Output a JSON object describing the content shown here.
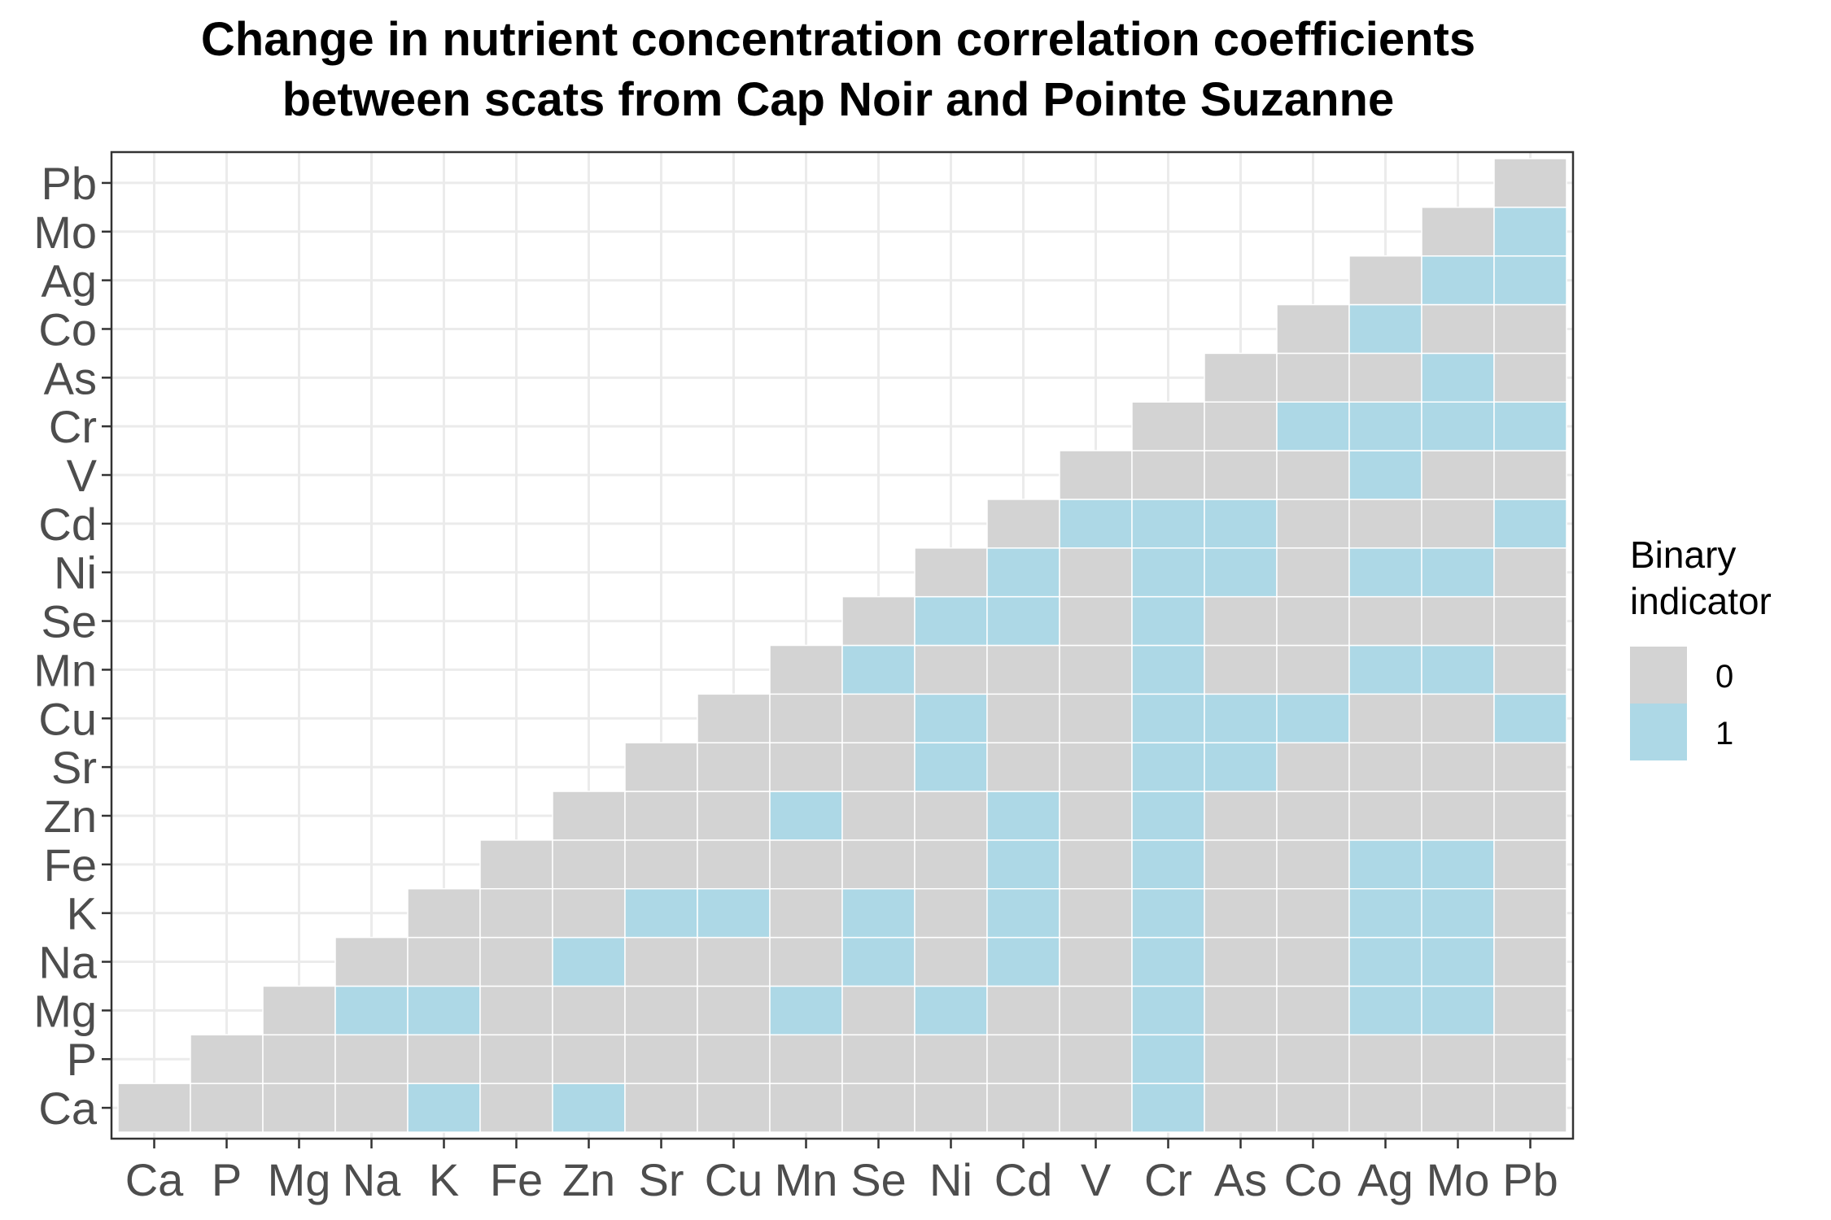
{
  "chart_data": {
    "type": "heatmap",
    "title_lines": [
      "Change in nutrient concentration correlation coefficients",
      "between scats from Cap Noir and Pointe Suzanne"
    ],
    "xlabel": "",
    "ylabel": "",
    "x_categories": [
      "Ca",
      "P",
      "Mg",
      "Na",
      "K",
      "Fe",
      "Zn",
      "Sr",
      "Cu",
      "Mn",
      "Se",
      "Ni",
      "Cd",
      "V",
      "Cr",
      "As",
      "Co",
      "Ag",
      "Mo",
      "Pb"
    ],
    "y_categories": [
      "Ca",
      "P",
      "Mg",
      "Na",
      "K",
      "Fe",
      "Zn",
      "Sr",
      "Cu",
      "Mn",
      "Se",
      "Ni",
      "Cd",
      "V",
      "Cr",
      "As",
      "Co",
      "Ag",
      "Mo",
      "Pb"
    ],
    "matrix_note": "upper triangle; row index = y category, column index = x category; null = no tile",
    "values": [
      [
        0,
        0,
        0,
        0,
        1,
        0,
        1,
        0,
        0,
        0,
        0,
        0,
        0,
        0,
        1,
        0,
        0,
        0,
        0,
        0
      ],
      [
        null,
        0,
        0,
        0,
        0,
        0,
        0,
        0,
        0,
        0,
        0,
        0,
        0,
        0,
        1,
        0,
        0,
        0,
        0,
        0
      ],
      [
        null,
        null,
        0,
        1,
        1,
        0,
        0,
        0,
        0,
        1,
        0,
        1,
        0,
        0,
        1,
        0,
        0,
        1,
        1,
        0
      ],
      [
        null,
        null,
        null,
        0,
        0,
        0,
        1,
        0,
        0,
        0,
        1,
        0,
        1,
        0,
        1,
        0,
        0,
        1,
        1,
        0
      ],
      [
        null,
        null,
        null,
        null,
        0,
        0,
        0,
        1,
        1,
        0,
        1,
        0,
        1,
        0,
        1,
        0,
        0,
        1,
        1,
        0
      ],
      [
        null,
        null,
        null,
        null,
        null,
        0,
        0,
        0,
        0,
        0,
        0,
        0,
        1,
        0,
        1,
        0,
        0,
        1,
        1,
        0
      ],
      [
        null,
        null,
        null,
        null,
        null,
        null,
        0,
        0,
        0,
        1,
        0,
        0,
        1,
        0,
        1,
        0,
        0,
        0,
        0,
        0
      ],
      [
        null,
        null,
        null,
        null,
        null,
        null,
        null,
        0,
        0,
        0,
        0,
        1,
        0,
        0,
        1,
        1,
        0,
        0,
        0,
        0
      ],
      [
        null,
        null,
        null,
        null,
        null,
        null,
        null,
        null,
        0,
        0,
        0,
        1,
        0,
        0,
        1,
        1,
        1,
        0,
        0,
        1
      ],
      [
        null,
        null,
        null,
        null,
        null,
        null,
        null,
        null,
        null,
        0,
        1,
        0,
        0,
        0,
        1,
        0,
        0,
        1,
        1,
        0
      ],
      [
        null,
        null,
        null,
        null,
        null,
        null,
        null,
        null,
        null,
        null,
        0,
        1,
        1,
        0,
        1,
        0,
        0,
        0,
        0,
        0
      ],
      [
        null,
        null,
        null,
        null,
        null,
        null,
        null,
        null,
        null,
        null,
        null,
        0,
        1,
        0,
        1,
        1,
        0,
        1,
        1,
        0
      ],
      [
        null,
        null,
        null,
        null,
        null,
        null,
        null,
        null,
        null,
        null,
        null,
        null,
        0,
        1,
        1,
        1,
        0,
        0,
        0,
        1
      ],
      [
        null,
        null,
        null,
        null,
        null,
        null,
        null,
        null,
        null,
        null,
        null,
        null,
        null,
        0,
        0,
        0,
        0,
        1,
        0,
        0
      ],
      [
        null,
        null,
        null,
        null,
        null,
        null,
        null,
        null,
        null,
        null,
        null,
        null,
        null,
        null,
        0,
        0,
        1,
        1,
        1,
        1
      ],
      [
        null,
        null,
        null,
        null,
        null,
        null,
        null,
        null,
        null,
        null,
        null,
        null,
        null,
        null,
        null,
        0,
        0,
        0,
        1,
        0
      ],
      [
        null,
        null,
        null,
        null,
        null,
        null,
        null,
        null,
        null,
        null,
        null,
        null,
        null,
        null,
        null,
        null,
        0,
        1,
        0,
        0
      ],
      [
        null,
        null,
        null,
        null,
        null,
        null,
        null,
        null,
        null,
        null,
        null,
        null,
        null,
        null,
        null,
        null,
        null,
        0,
        1,
        1
      ],
      [
        null,
        null,
        null,
        null,
        null,
        null,
        null,
        null,
        null,
        null,
        null,
        null,
        null,
        null,
        null,
        null,
        null,
        null,
        0,
        1
      ],
      [
        null,
        null,
        null,
        null,
        null,
        null,
        null,
        null,
        null,
        null,
        null,
        null,
        null,
        null,
        null,
        null,
        null,
        null,
        null,
        0
      ]
    ],
    "legend": {
      "title_lines": [
        "Binary",
        "indicator"
      ],
      "position": "right",
      "entries": [
        {
          "label": "0",
          "value": 0,
          "color": "#d3d3d3"
        },
        {
          "label": "1",
          "value": 1,
          "color": "#add8e6"
        }
      ]
    },
    "grid": true,
    "colors": {
      "zero": "#d3d3d3",
      "one": "#add8e6",
      "grid": "#ebebeb",
      "panel_border": "#333333",
      "tick_label": "#4d4d4d"
    }
  }
}
